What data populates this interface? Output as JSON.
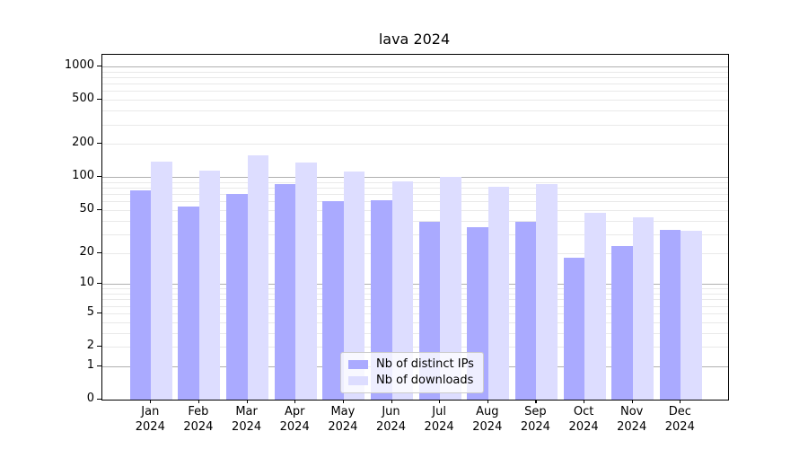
{
  "chart_data": {
    "type": "bar",
    "title": "lava 2024",
    "categories": [
      "Jan 2024",
      "Feb 2024",
      "Mar 2024",
      "Apr 2024",
      "May 2024",
      "Jun 2024",
      "Jul 2024",
      "Aug 2024",
      "Sep 2024",
      "Oct 2024",
      "Nov 2024",
      "Dec 2024"
    ],
    "series": [
      {
        "name": "Nb of distinct IPs",
        "color": "#aaaaff",
        "values": [
          75,
          54,
          70,
          86,
          60,
          62,
          39,
          35,
          39,
          18,
          23,
          33
        ]
      },
      {
        "name": "Nb of downloads",
        "color": "#ddddff",
        "values": [
          139,
          114,
          158,
          135,
          112,
          92,
          100,
          82,
          86,
          47,
          43,
          32
        ]
      }
    ],
    "xlabel": "",
    "ylabel": "",
    "yscale": "log1p",
    "yticks": [
      0,
      1,
      2,
      5,
      10,
      20,
      50,
      100,
      200,
      500,
      1000
    ],
    "ylim": [
      0,
      1275
    ],
    "grid": "horizontal major and minor",
    "legend_position": "inside bottom-center"
  },
  "colors": {
    "grid_major": "#b0b0b0",
    "grid_minor": "#e9e9e9",
    "spine": "#000000",
    "background": "#ffffff",
    "legend_border": "#cccccc"
  }
}
